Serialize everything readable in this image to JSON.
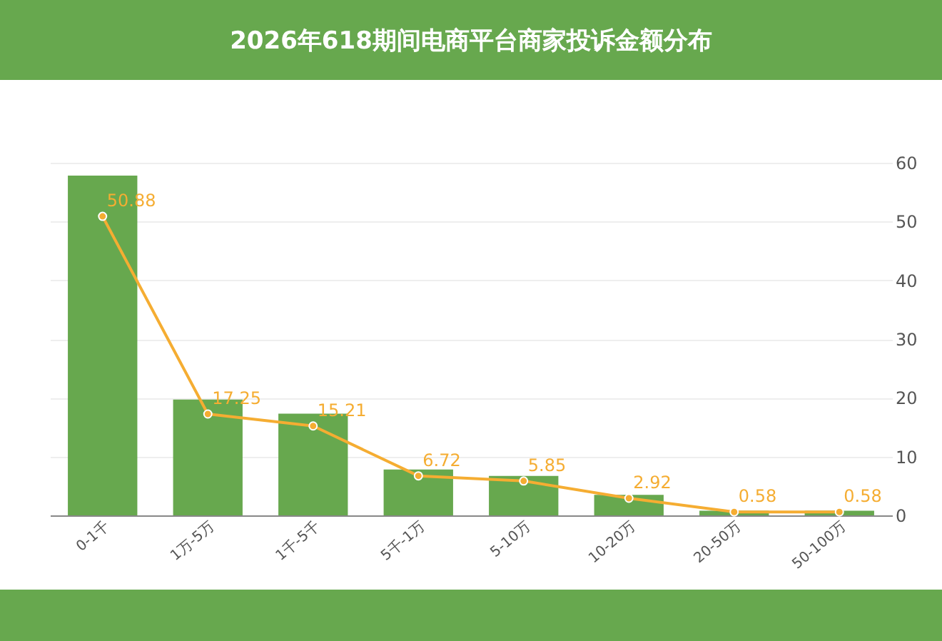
{
  "chart_data": {
    "type": "bar",
    "title": "2026年618期间电商平台商家投诉金额分布",
    "categories": [
      "0-1千",
      "1万-5万",
      "1千-5千",
      "5千-1万",
      "5-10万",
      "10-20万",
      "20-50万",
      "50-100万"
    ],
    "series": [
      {
        "color": "#67a84e",
        "values": [
          57.8,
          19.7,
          17.3,
          7.8,
          6.7,
          3.5,
          0.8,
          0.8
        ]
      },
      {
        "type": "line",
        "color": "#f5ad32",
        "values": [
          50.88,
          17.25,
          15.21,
          6.72,
          5.85,
          2.92,
          0.58,
          0.58
        ],
        "value_labels": [
          "50.88",
          "17.25",
          "15.21",
          "6.72",
          "5.85",
          "2.92",
          "0.58",
          "0.58"
        ]
      }
    ],
    "ylim": [
      0,
      60
    ],
    "yticks": [
      0,
      10,
      20,
      30,
      40,
      50,
      60
    ],
    "grid": "y",
    "marker": "circle"
  }
}
